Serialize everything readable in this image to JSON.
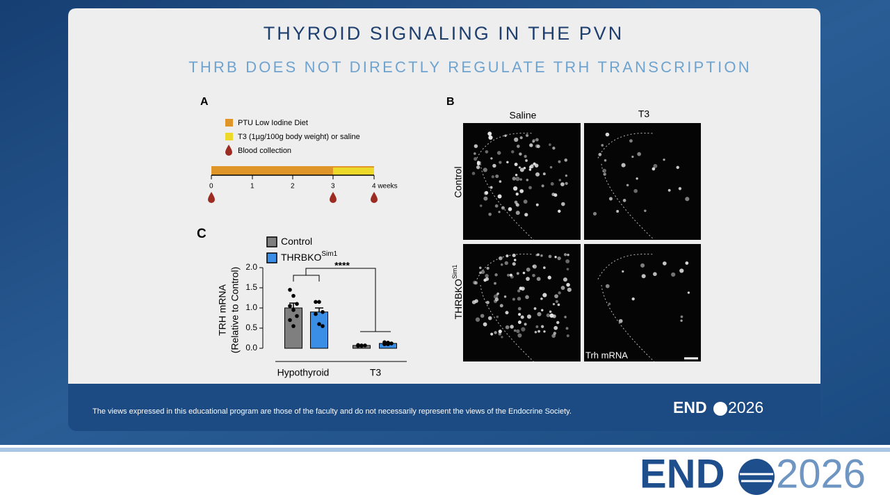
{
  "slide": {
    "title": "THYROID SIGNALING IN THE PVN",
    "subtitle": "THRB DOES NOT DIRECTLY REGULATE TRH TRANSCRIPTION"
  },
  "panel_a": {
    "label": "A",
    "legend": [
      "PTU Low Iodine Diet",
      "T3 (1µg/100g body weight) or saline",
      "Blood collection"
    ],
    "timeline_ticks": [
      "0",
      "1",
      "2",
      "3",
      "4 weeks"
    ]
  },
  "panel_b": {
    "label": "B",
    "columns": [
      "Saline",
      "T3"
    ],
    "rows": [
      "Control",
      "THRBKO"
    ],
    "row_sup": "Sim1",
    "caption": "Trh mRNA"
  },
  "chart_data": {
    "type": "bar",
    "panel_label": "C",
    "ylabel": [
      "TRH mRNA",
      "(Relative to Control)"
    ],
    "categories": [
      "Hypothyroid",
      "T3"
    ],
    "series": [
      {
        "name": "Control",
        "color": "#7f7f7f",
        "values": [
          1.0,
          0.07
        ],
        "error": [
          0.12,
          0.01
        ],
        "points": [
          [
            1.45,
            1.3,
            1.1,
            1.05,
            0.95,
            0.8,
            0.7,
            0.55
          ],
          [
            0.08,
            0.07,
            0.07,
            0.06,
            0.06
          ]
        ]
      },
      {
        "name": "THRBKO",
        "name_sup": "Sim1",
        "color": "#3a8ee6",
        "values": [
          0.9,
          0.12
        ],
        "error": [
          0.1,
          0.02
        ],
        "points": [
          [
            1.15,
            1.15,
            0.9,
            0.85,
            0.6,
            0.55
          ],
          [
            0.15,
            0.14,
            0.12,
            0.1,
            0.1
          ]
        ]
      }
    ],
    "ylim": [
      0,
      2.0
    ],
    "yticks": [
      {
        "value": 0,
        "label": "0.0"
      },
      {
        "value": 0.5,
        "label": "0.5"
      },
      {
        "value": 1.0,
        "label": "1.0"
      },
      {
        "value": 1.5,
        "label": "1.5"
      },
      {
        "value": 2.0,
        "label": "2.0"
      }
    ],
    "significance": "****"
  },
  "footer": {
    "disclaimer": "The views expressed in this educational program are those of the faculty and do not necessarily represent the views of the Endocrine Society.",
    "logo_left": "END",
    "logo_right": "2026"
  },
  "brand": {
    "logo_left": "END",
    "logo_right": "2026"
  }
}
